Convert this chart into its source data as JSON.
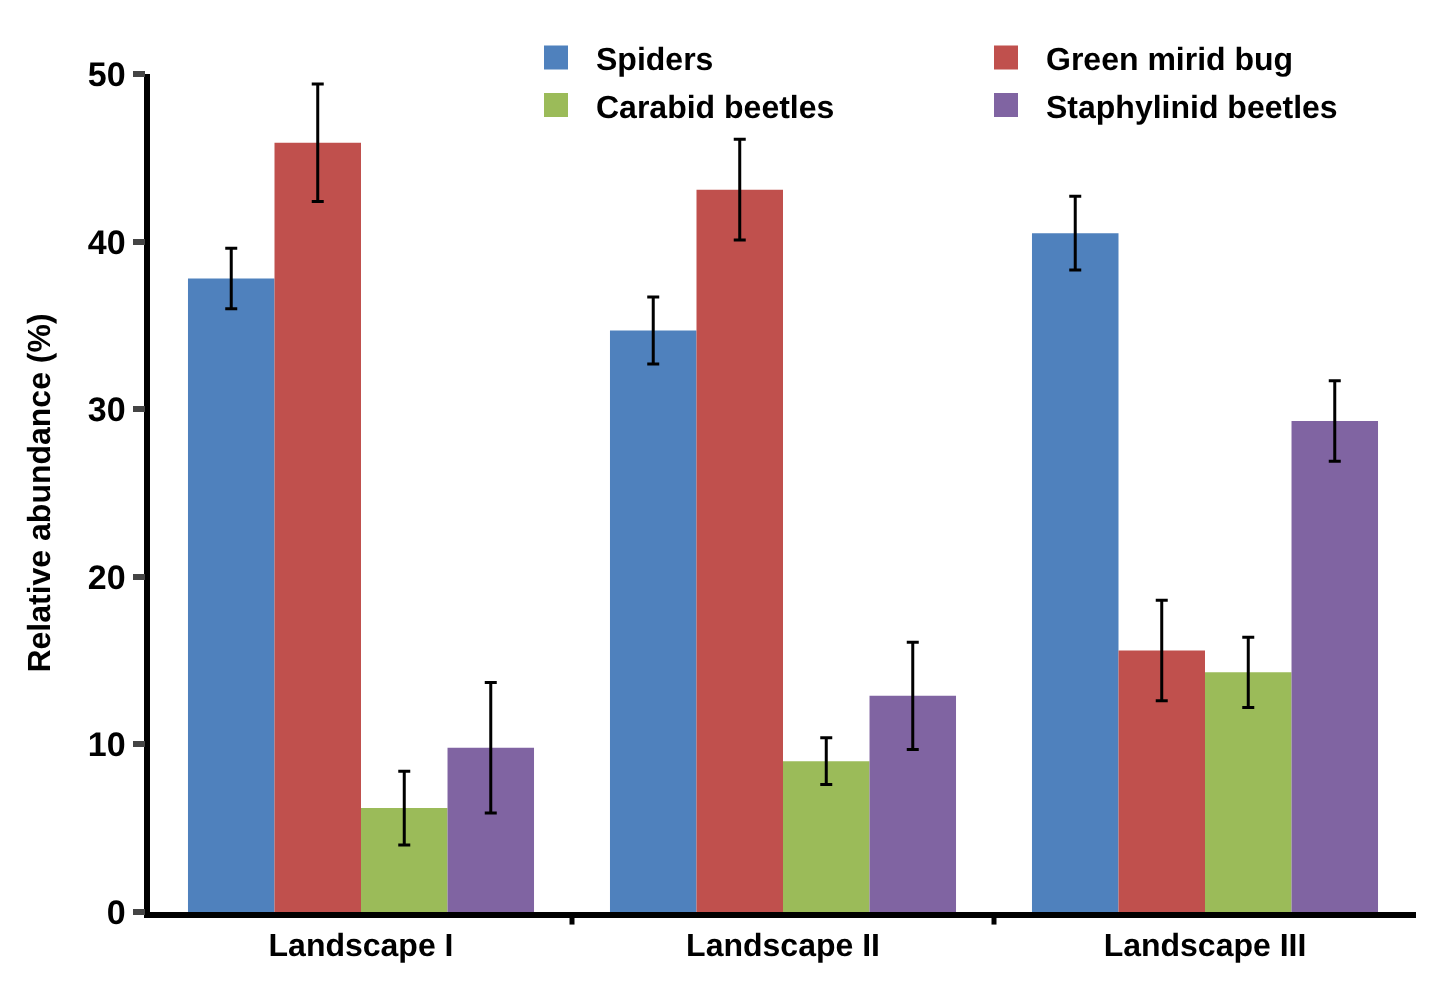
{
  "chart_data": {
    "type": "bar",
    "ylabel": "Relative abundance (%)",
    "categories": [
      "Landscape I",
      "Landscape II",
      "Landscape III"
    ],
    "series": [
      {
        "name": "Spiders",
        "color": "#4f81bd",
        "values": [
          37.8,
          34.7,
          40.5
        ],
        "errors": [
          1.8,
          2.0,
          2.2
        ]
      },
      {
        "name": "Green mirid bug",
        "color": "#c0504d",
        "values": [
          45.9,
          43.1,
          15.6
        ],
        "errors": [
          3.5,
          3.0,
          3.0
        ]
      },
      {
        "name": "Carabid beetles",
        "color": "#9bbb59",
        "values": [
          6.2,
          9.0,
          14.3
        ],
        "errors": [
          2.2,
          1.4,
          2.1
        ]
      },
      {
        "name": "Staphylinid beetles",
        "color": "#8064a2",
        "values": [
          9.8,
          12.9,
          29.3
        ],
        "errors": [
          3.9,
          3.2,
          2.4
        ]
      }
    ],
    "ylim": [
      0,
      50
    ],
    "yticks": [
      0,
      10,
      20,
      30,
      40,
      50
    ],
    "legend": "top right"
  }
}
